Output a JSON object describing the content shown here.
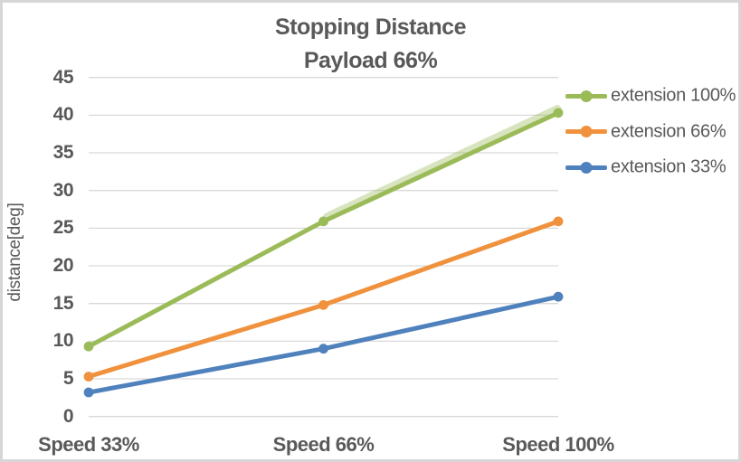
{
  "window": {
    "background": "#FFFFFF",
    "border_color": "#D6D6D6",
    "text_color": "#595959"
  },
  "chart_data": {
    "type": "line",
    "title": "Stopping Distance",
    "subtitle": "Payload 66%",
    "xlabel": "",
    "ylabel": "distance[deg]",
    "categories": [
      "Speed 33%",
      "Speed 66%",
      "Speed 100%"
    ],
    "series": [
      {
        "name": "extension 100%",
        "color": "#9BBB59",
        "values": [
          9.3,
          25.9,
          40.3
        ]
      },
      {
        "name": "extension 66%",
        "color": "#F0913D",
        "values": [
          5.3,
          14.8,
          25.9
        ]
      },
      {
        "name": "extension 33%",
        "color": "#4F81BD",
        "values": [
          3.2,
          9.0,
          15.9
        ]
      }
    ],
    "ylim": [
      0,
      45
    ],
    "ytick_step": 5,
    "yticks": [
      0,
      5,
      10,
      15,
      20,
      25,
      30,
      35,
      40,
      45
    ],
    "grid": "horizontal",
    "gridline_color": "#D9D9D9",
    "legend": {
      "position": "right",
      "entries": [
        "extension 100%",
        "extension 66%",
        "extension 33%"
      ]
    },
    "marker": "circle",
    "highlight_glow": {
      "series": "extension 100%",
      "from_category": "Speed 66%",
      "from_value": 26.5,
      "to_category": "Speed 100%",
      "to_value": 40.8,
      "color": "#9BBB59",
      "opacity": 0.38
    }
  }
}
